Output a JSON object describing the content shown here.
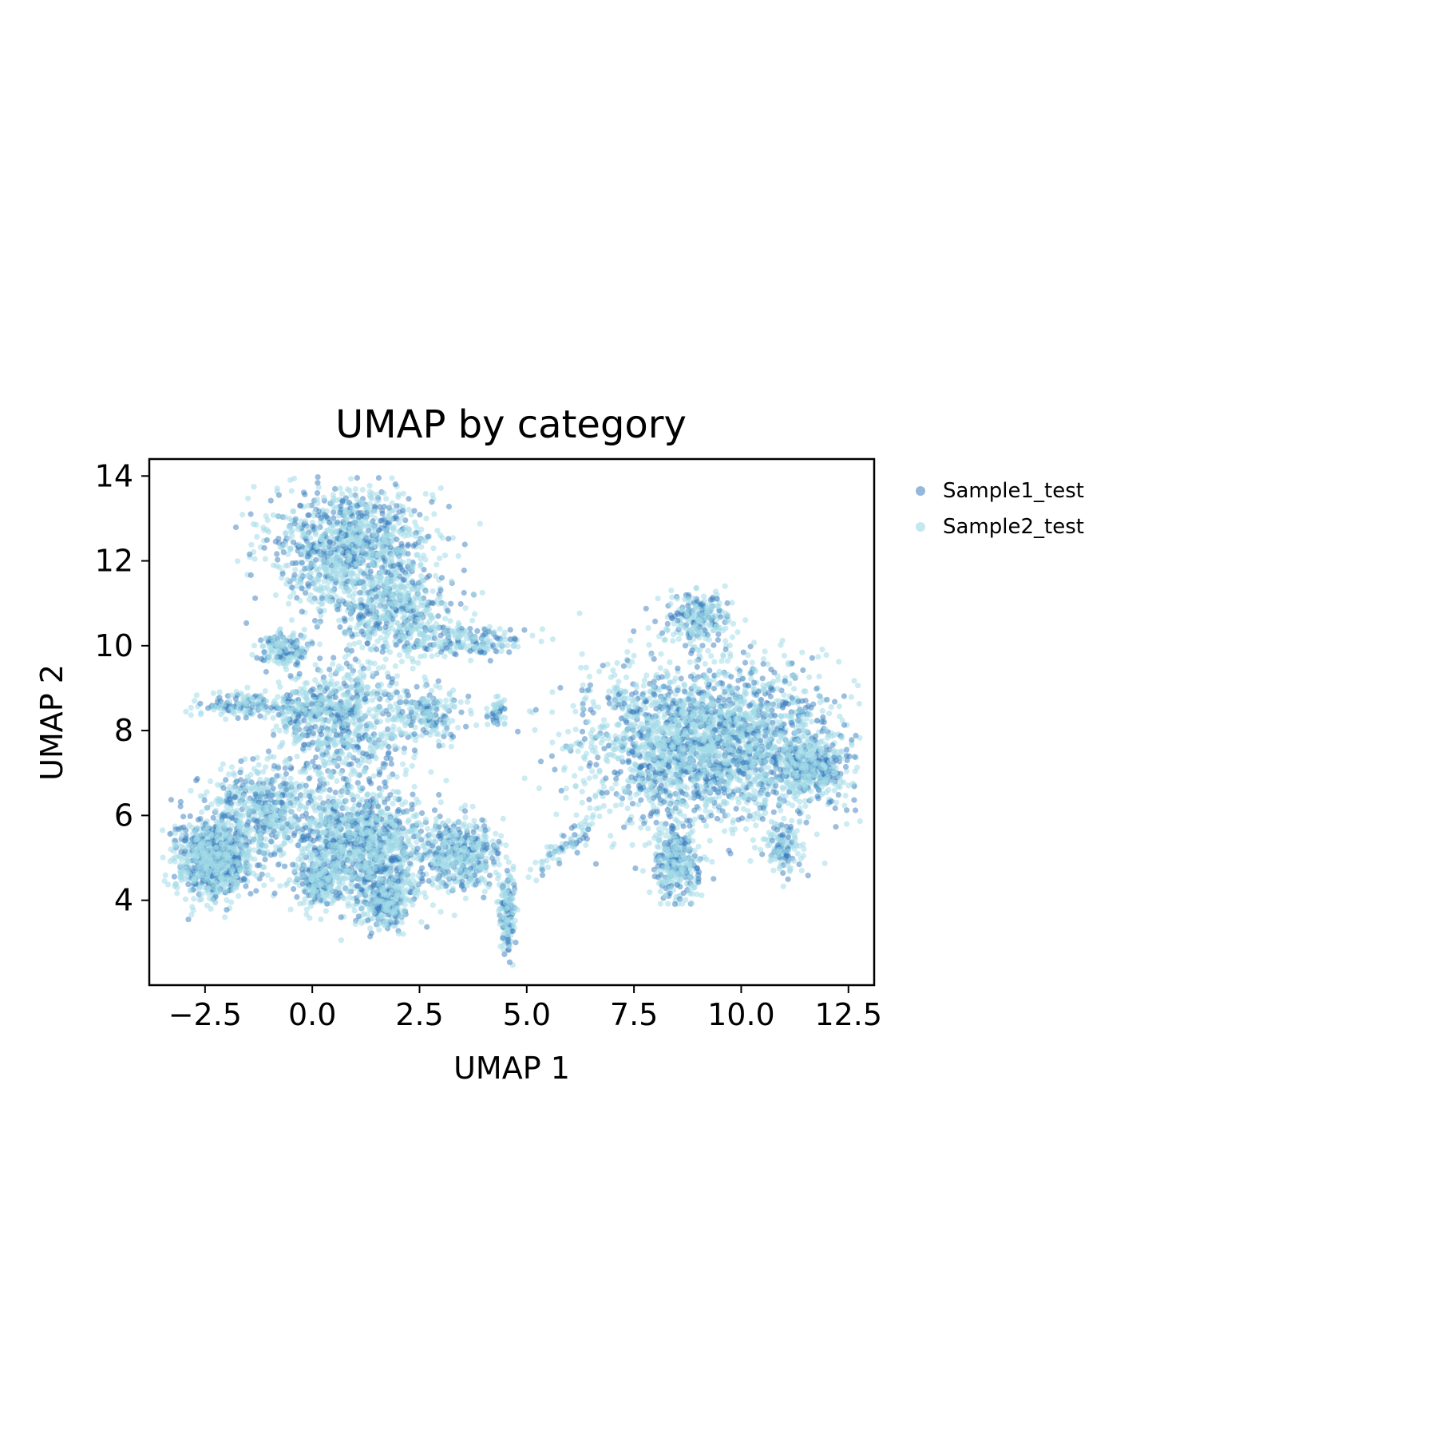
{
  "chart_data": {
    "type": "scatter",
    "title": "UMAP by category",
    "xlabel": "UMAP 1",
    "ylabel": "UMAP 2",
    "xlim": [
      -3.8,
      13.1
    ],
    "ylim": [
      2.0,
      14.4
    ],
    "xticks": [
      -2.5,
      0.0,
      2.5,
      5.0,
      7.5,
      10.0,
      12.5
    ],
    "xtick_labels": [
      "−2.5",
      "0.0",
      "2.5",
      "5.0",
      "7.5",
      "10.0",
      "12.5"
    ],
    "yticks": [
      4,
      6,
      8,
      10,
      12,
      14
    ],
    "ytick_labels": [
      "4",
      "6",
      "8",
      "10",
      "12",
      "14"
    ],
    "grid": false,
    "legend": {
      "placement": "outside-right-top"
    },
    "series": [
      {
        "name": "Sample1_test",
        "color": "#3a7dbd",
        "opacity": 0.5,
        "approx_points": 3400,
        "regions": [
          {
            "cx": 0.9,
            "cy": 12.3,
            "rx": 1.7,
            "ry": 1.35,
            "w": 1400,
            "min_y": 10.0
          },
          {
            "cx": 1.9,
            "cy": 10.8,
            "rx": 1.3,
            "ry": 0.8,
            "w": 500
          },
          {
            "cx": 3.5,
            "cy": 10.1,
            "rx": 1.35,
            "ry": 0.35,
            "w": 250
          },
          {
            "cx": -0.7,
            "cy": 9.9,
            "rx": 0.55,
            "ry": 0.35,
            "w": 200
          },
          {
            "cx": 0.8,
            "cy": 8.2,
            "rx": 1.4,
            "ry": 1.5,
            "w": 900
          },
          {
            "cx": -1.6,
            "cy": 8.6,
            "rx": 0.9,
            "ry": 0.25,
            "w": 180
          },
          {
            "cx": 2.7,
            "cy": 8.4,
            "rx": 0.7,
            "ry": 0.6,
            "w": 200
          },
          {
            "cx": -0.2,
            "cy": 8.5,
            "rx": 0.6,
            "ry": 0.45,
            "w": 150
          },
          {
            "cx": -2.3,
            "cy": 4.95,
            "rx": 0.85,
            "ry": 0.8,
            "w": 1100
          },
          {
            "cx": -1.2,
            "cy": 6.2,
            "rx": 1.3,
            "ry": 1.0,
            "w": 600
          },
          {
            "cx": 1.1,
            "cy": 5.2,
            "rx": 1.6,
            "ry": 1.2,
            "w": 1600
          },
          {
            "cx": 1.75,
            "cy": 3.9,
            "rx": 0.5,
            "ry": 0.5,
            "w": 300
          },
          {
            "cx": 0.1,
            "cy": 4.4,
            "rx": 0.35,
            "ry": 0.35,
            "w": 220
          },
          {
            "cx": 3.5,
            "cy": 5.1,
            "rx": 0.75,
            "ry": 0.75,
            "w": 500
          },
          {
            "cx": 4.55,
            "cy": 3.7,
            "rx": 0.16,
            "ry": 0.95,
            "w": 200
          },
          {
            "cx": 4.3,
            "cy": 8.45,
            "rx": 0.2,
            "ry": 0.3,
            "w": 60
          },
          {
            "cx": 5.9,
            "cy": 5.3,
            "rx": 0.95,
            "ry": 0.22,
            "w": 90,
            "rot": 0.72
          },
          {
            "cx": 9.3,
            "cy": 7.7,
            "rx": 2.7,
            "ry": 1.6,
            "w": 3200
          },
          {
            "cx": 9.0,
            "cy": 10.6,
            "rx": 0.75,
            "ry": 0.55,
            "w": 300
          },
          {
            "cx": 11.6,
            "cy": 7.1,
            "rx": 0.65,
            "ry": 0.55,
            "w": 400
          },
          {
            "cx": 8.5,
            "cy": 4.9,
            "rx": 0.5,
            "ry": 0.75,
            "w": 400
          },
          {
            "cx": 11.0,
            "cy": 5.3,
            "rx": 0.35,
            "ry": 0.6,
            "w": 150
          }
        ]
      },
      {
        "name": "Sample2_test",
        "color": "#a3dbe8",
        "opacity": 0.55,
        "approx_points": 7600,
        "regions": [
          {
            "cx": 0.9,
            "cy": 12.3,
            "rx": 1.7,
            "ry": 1.35,
            "w": 1400,
            "min_y": 10.0
          },
          {
            "cx": 1.9,
            "cy": 10.8,
            "rx": 1.3,
            "ry": 0.8,
            "w": 500
          },
          {
            "cx": 3.5,
            "cy": 10.1,
            "rx": 1.35,
            "ry": 0.35,
            "w": 250
          },
          {
            "cx": -0.7,
            "cy": 9.9,
            "rx": 0.55,
            "ry": 0.35,
            "w": 200
          },
          {
            "cx": 0.8,
            "cy": 8.2,
            "rx": 1.4,
            "ry": 1.5,
            "w": 900
          },
          {
            "cx": -1.6,
            "cy": 8.6,
            "rx": 0.9,
            "ry": 0.25,
            "w": 180
          },
          {
            "cx": 2.7,
            "cy": 8.4,
            "rx": 0.7,
            "ry": 0.6,
            "w": 200
          },
          {
            "cx": -0.2,
            "cy": 8.5,
            "rx": 0.6,
            "ry": 0.45,
            "w": 150
          },
          {
            "cx": -2.3,
            "cy": 4.95,
            "rx": 0.85,
            "ry": 0.8,
            "w": 1100
          },
          {
            "cx": -1.2,
            "cy": 6.2,
            "rx": 1.3,
            "ry": 1.0,
            "w": 600
          },
          {
            "cx": 1.1,
            "cy": 5.2,
            "rx": 1.6,
            "ry": 1.2,
            "w": 1600
          },
          {
            "cx": 1.75,
            "cy": 3.9,
            "rx": 0.5,
            "ry": 0.5,
            "w": 300
          },
          {
            "cx": 0.1,
            "cy": 4.4,
            "rx": 0.35,
            "ry": 0.35,
            "w": 220
          },
          {
            "cx": 3.5,
            "cy": 5.1,
            "rx": 0.75,
            "ry": 0.75,
            "w": 500
          },
          {
            "cx": 4.55,
            "cy": 3.7,
            "rx": 0.16,
            "ry": 0.95,
            "w": 200
          },
          {
            "cx": 4.3,
            "cy": 8.45,
            "rx": 0.2,
            "ry": 0.3,
            "w": 60
          },
          {
            "cx": 5.9,
            "cy": 5.3,
            "rx": 0.95,
            "ry": 0.22,
            "w": 90,
            "rot": 0.72
          },
          {
            "cx": 9.3,
            "cy": 7.7,
            "rx": 2.7,
            "ry": 1.6,
            "w": 3200
          },
          {
            "cx": 9.0,
            "cy": 10.6,
            "rx": 0.75,
            "ry": 0.55,
            "w": 300
          },
          {
            "cx": 11.6,
            "cy": 7.1,
            "rx": 0.65,
            "ry": 0.55,
            "w": 400
          },
          {
            "cx": 8.5,
            "cy": 4.9,
            "rx": 0.5,
            "ry": 0.75,
            "w": 400
          },
          {
            "cx": 11.0,
            "cy": 5.3,
            "rx": 0.35,
            "ry": 0.6,
            "w": 150
          }
        ]
      }
    ]
  }
}
